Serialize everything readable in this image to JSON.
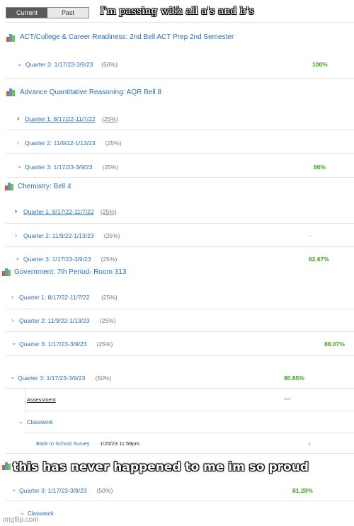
{
  "tabs": {
    "current": "Current",
    "past": "Past"
  },
  "caption_top": "I'm passing with all a's and b's",
  "caption_bottom": "this has never happened to me im so proud",
  "courses": [
    {
      "title": "ACT/College & Career Readiness: 2nd Bell ACT Prep 2nd Semester"
    },
    {
      "title": "Advance Quantitative Reasoning: AQR Bell 8"
    },
    {
      "title": "Chemistry: Bell 4"
    },
    {
      "title": "Government: 7th Period- Room 313"
    }
  ],
  "periods": [
    {
      "label": "Quarter 3: 1/17/23-3/9/23",
      "weight": "(50%)",
      "grade": "100%"
    },
    {
      "label": "Quarter 1: 8/17/22-11/7/22",
      "weight": "(25%)",
      "grade": ""
    },
    {
      "label": "Quarter 2: 11/9/22-1/13/23",
      "weight": "(25%)",
      "grade": ""
    },
    {
      "label": "Quarter 3: 1/17/23-3/9/23",
      "weight": "(25%)",
      "grade": "86%"
    },
    {
      "label": "Quarter 1: 8/17/22-11/7/22",
      "weight": "(25%)",
      "grade": ""
    },
    {
      "label": "Quarter 2: 11/9/22-1/13/23",
      "weight": "(25%)",
      "grade": "."
    },
    {
      "label": "Quarter 3: 1/17/23-3/9/23",
      "weight": "(25%)",
      "grade": "82.67%"
    },
    {
      "label": "Quarter 1: 8/17/22-11/7/22",
      "weight": "(25%)",
      "grade": ""
    },
    {
      "label": "Quarter 2: 11/9/22-1/13/23",
      "weight": "(25%)",
      "grade": ""
    },
    {
      "label": "Quarter 3: 1/17/23-3/9/23",
      "weight": "(25%)",
      "grade": "88.07%"
    },
    {
      "label": "Quarter 3: 1/17/23-3/9/23",
      "weight": "(50%)",
      "grade": "80.85%"
    },
    {
      "label": "Quarter 3: 1/17/23-3/9/23",
      "weight": "(50%)",
      "grade": "81.28%"
    }
  ],
  "assessment": {
    "label": "Assessment",
    "grade": "—"
  },
  "classwork": {
    "label": "Classwork"
  },
  "assignment": {
    "title": "Back to School Survey",
    "due": "1/20/23 11:59pm"
  },
  "watermark": "imgflip.com",
  "colors": {
    "link": "#2a6ebb",
    "grade": "#3aa31a"
  }
}
